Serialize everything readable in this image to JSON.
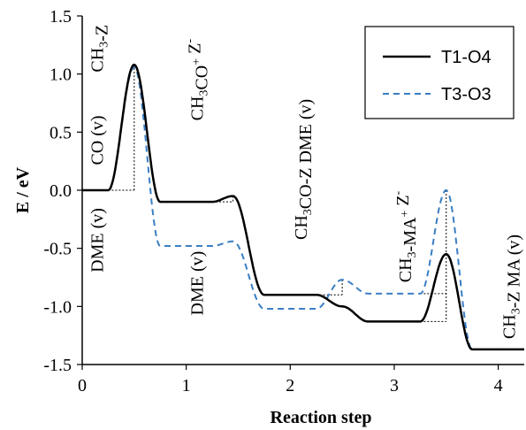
{
  "chart_data": {
    "type": "line",
    "title": "",
    "xlabel": "Reaction step",
    "ylabel": "E / eV",
    "xlim": [
      0,
      4.25
    ],
    "ylim": [
      -1.5,
      1.5
    ],
    "x_ticks": [
      0,
      1,
      2,
      3,
      4
    ],
    "y_ticks": [
      -1.5,
      -1.0,
      -0.5,
      0.0,
      0.5,
      1.0,
      1.5
    ],
    "x_tick_labels": [
      "0",
      "1",
      "2",
      "3",
      "4"
    ],
    "y_tick_labels": [
      "-1.5",
      "-1.0",
      "-0.5",
      "0.0",
      "0.5",
      "1.0",
      "1.5"
    ],
    "legend_position": "top-right",
    "series": [
      {
        "name": "T1-O4",
        "color": "#000000",
        "style": "solid",
        "levels": [
          {
            "x": [
              0,
              0.25
            ],
            "y": 0.0
          },
          {
            "x": [
              0.75,
              1.25
            ],
            "y": -0.1
          },
          {
            "x": [
              1.75,
              2.25
            ],
            "y": -0.9
          },
          {
            "x": [
              2.75,
              3.25
            ],
            "y": -1.13
          },
          {
            "x": [
              3.75,
              4.25
            ],
            "y": -1.37
          }
        ],
        "peaks": [
          {
            "x": 0.5,
            "y": 1.08
          },
          {
            "x": 1.45,
            "y": -0.05
          },
          {
            "x": 2.5,
            "y": -1.0
          },
          {
            "x": 3.5,
            "y": -0.55
          }
        ]
      },
      {
        "name": "T3-O3",
        "color": "#3a7ec3",
        "style": "dashed",
        "levels": [
          {
            "x": [
              0,
              0.25
            ],
            "y": 0.0
          },
          {
            "x": [
              0.75,
              1.25
            ],
            "y": -0.48
          },
          {
            "x": [
              1.75,
              2.25
            ],
            "y": -1.02
          },
          {
            "x": [
              2.75,
              3.25
            ],
            "y": -0.89
          },
          {
            "x": [
              3.75,
              4.25
            ],
            "y": -1.37
          }
        ],
        "peaks": [
          {
            "x": 0.5,
            "y": 1.06
          },
          {
            "x": 1.45,
            "y": -0.44
          },
          {
            "x": 2.5,
            "y": -0.77
          },
          {
            "x": 3.5,
            "y": 0.0
          }
        ]
      }
    ],
    "annotations": [
      {
        "id": "co-v",
        "text": [
          "CO (v)"
        ],
        "x": 0.2,
        "y": 0.43
      },
      {
        "id": "ch3-z",
        "text": [
          "CH",
          "3",
          "-Z"
        ],
        "x": 0.2,
        "y": 1.22
      },
      {
        "id": "dme-v-1",
        "text": [
          "DME (v)"
        ],
        "x": 0.2,
        "y": -0.43
      },
      {
        "id": "ch3co-z-minus",
        "text": [
          "CH",
          "3",
          "CO",
          "+",
          " Z",
          "-"
        ],
        "x": 1.16,
        "y": 0.95
      },
      {
        "id": "dme-v-2",
        "text": [
          "DME (v)"
        ],
        "x": 1.16,
        "y": -0.8
      },
      {
        "id": "ch3co-z-dme",
        "text": [
          "CH",
          "3",
          "CO-Z DME (v)"
        ],
        "x": 2.16,
        "y": 0.18
      },
      {
        "id": "ch3-ma-z",
        "text": [
          "CH",
          "3",
          "-MA",
          "+",
          " Z",
          "-"
        ],
        "x": 3.16,
        "y": -0.4
      },
      {
        "id": "ch3-z-ma",
        "text": [
          "CH",
          "3",
          "-Z MA (v)"
        ],
        "x": 4.16,
        "y": -0.83
      }
    ]
  }
}
